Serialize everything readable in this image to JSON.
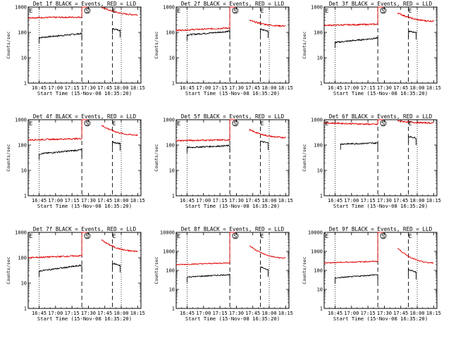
{
  "figure": {
    "legend_text": "BLACK = Events, RED = LLD",
    "ylabel": "Counts/sec",
    "xlabel": "Start Time (15-Nov-08 16:35:20)",
    "series_colors": {
      "events": "#000000",
      "lld": "#e00000"
    },
    "panels": [
      {
        "title": "Det 1f  BLACK = Events, RED = LLD"
      },
      {
        "title": "Det 2f  BLACK = Events, RED = LLD"
      },
      {
        "title": "Det 3f  BLACK = Events, RED = LLD"
      },
      {
        "title": "Det 4f  BLACK = Events, RED = LLD"
      },
      {
        "title": "Det 5f  BLACK = Events, RED = LLD"
      },
      {
        "title": "Det 6f  BLACK = Events, RED = LLD"
      },
      {
        "title": "Det 7f  BLACK = Events, RED = LLD"
      },
      {
        "title": "Det 8f  BLACK = Events, RED = LLD"
      },
      {
        "title": "Det 9f  BLACK = Events, RED = LLD"
      }
    ]
  },
  "chart_data": [
    {
      "type": "line",
      "title": "Det 1f  BLACK = Events, RED = LLD",
      "xlabel": "Start Time (15-Nov-08 16:35:20)",
      "ylabel": "Counts/sec",
      "yscale": "log",
      "ylim": [
        1,
        1000
      ],
      "yticks": [
        "1",
        "10",
        "100",
        "1000"
      ],
      "xticks": [
        "16:45",
        "17:00",
        "17:15",
        "17:30",
        "17:45",
        "18:00",
        "18:15"
      ],
      "xlim": [
        "16:35",
        "18:18"
      ],
      "vlines_dotted": [
        "16:45",
        "18:00"
      ],
      "vlines_dashed": [
        "17:24",
        "17:52"
      ],
      "markers": [
        {
          "label": "E",
          "x": "16:36"
        },
        {
          "label": "S",
          "x": "17:29"
        },
        {
          "label": "E",
          "x": "17:52"
        }
      ],
      "series": [
        {
          "name": "Events",
          "color": "#000000",
          "segments": [
            {
              "x": [
                "16:45",
                "17:24"
              ],
              "y": [
                62,
                90
              ]
            },
            {
              "x": [
                "17:52",
                "17:59"
              ],
              "y": [
                140,
                120
              ]
            }
          ]
        },
        {
          "name": "LLD",
          "color": "#e00000",
          "segments": [
            {
              "x": [
                "16:35",
                "17:24"
              ],
              "y": [
                380,
                400
              ]
            },
            {
              "x": [
                "17:24",
                "17:29"
              ],
              "y": [
                1000,
                1000
              ]
            },
            {
              "x": [
                "17:42",
                "18:15"
              ],
              "y": [
                1000,
                500
              ]
            }
          ]
        }
      ]
    },
    {
      "type": "line",
      "title": "Det 2f  BLACK = Events, RED = LLD",
      "xlabel": "Start Time (15-Nov-08 16:35:20)",
      "ylabel": "Counts/sec",
      "yscale": "log",
      "ylim": [
        1,
        1000
      ],
      "yticks": [
        "1",
        "10",
        "100",
        "1000"
      ],
      "xticks": [
        "16:45",
        "17:00",
        "17:15",
        "17:30",
        "17:45",
        "18:00",
        "18:15"
      ],
      "xlim": [
        "16:35",
        "18:18"
      ],
      "vlines_dotted": [
        "16:45",
        "18:00"
      ],
      "vlines_dashed": [
        "17:24",
        "17:52"
      ],
      "markers": [
        {
          "label": "E",
          "x": "16:36"
        },
        {
          "label": "S",
          "x": "17:29"
        },
        {
          "label": "E",
          "x": "17:52"
        }
      ],
      "series": [
        {
          "name": "Events",
          "color": "#000000",
          "segments": [
            {
              "x": [
                "16:45",
                "17:24"
              ],
              "y": [
                80,
                110
              ]
            },
            {
              "x": [
                "17:52",
                "17:59"
              ],
              "y": [
                130,
                115
              ]
            }
          ]
        },
        {
          "name": "LLD",
          "color": "#e00000",
          "segments": [
            {
              "x": [
                "16:35",
                "17:24"
              ],
              "y": [
                120,
                150
              ]
            },
            {
              "x": [
                "17:24",
                "17:29"
              ],
              "y": [
                1000,
                1000
              ]
            },
            {
              "x": [
                "17:42",
                "18:15"
              ],
              "y": [
                300,
                180
              ]
            }
          ]
        }
      ]
    },
    {
      "type": "line",
      "title": "Det 3f  BLACK = Events, RED = LLD",
      "xlabel": "Start Time (15-Nov-08 16:35:20)",
      "ylabel": "Counts/sec",
      "yscale": "log",
      "ylim": [
        1,
        1000
      ],
      "yticks": [
        "1",
        "10",
        "100",
        "1000"
      ],
      "xticks": [
        "16:45",
        "17:00",
        "17:15",
        "17:30",
        "17:45",
        "18:00",
        "18:15"
      ],
      "xlim": [
        "16:35",
        "18:18"
      ],
      "vlines_dotted": [
        "16:45",
        "18:00"
      ],
      "vlines_dashed": [
        "17:24",
        "17:52"
      ],
      "markers": [
        {
          "label": "E",
          "x": "16:36"
        },
        {
          "label": "S",
          "x": "17:29"
        },
        {
          "label": "E",
          "x": "17:52"
        }
      ],
      "series": [
        {
          "name": "Events",
          "color": "#000000",
          "segments": [
            {
              "x": [
                "16:45",
                "17:24"
              ],
              "y": [
                40,
                60
              ]
            },
            {
              "x": [
                "17:52",
                "17:59"
              ],
              "y": [
                110,
                100
              ]
            }
          ]
        },
        {
          "name": "LLD",
          "color": "#e00000",
          "segments": [
            {
              "x": [
                "16:35",
                "17:24"
              ],
              "y": [
                190,
                210
              ]
            },
            {
              "x": [
                "17:24",
                "17:29"
              ],
              "y": [
                1000,
                1000
              ]
            },
            {
              "x": [
                "17:42",
                "18:15"
              ],
              "y": [
                600,
                280
              ]
            }
          ]
        }
      ]
    },
    {
      "type": "line",
      "title": "Det 4f  BLACK = Events, RED = LLD",
      "xlabel": "Start Time (15-Nov-08 16:35:20)",
      "ylabel": "Counts/sec",
      "yscale": "log",
      "ylim": [
        1,
        1000
      ],
      "yticks": [
        "1",
        "10",
        "100",
        "1000"
      ],
      "xticks": [
        "16:45",
        "17:00",
        "17:15",
        "17:30",
        "17:45",
        "18:00",
        "18:15"
      ],
      "xlim": [
        "16:35",
        "18:18"
      ],
      "vlines_dotted": [
        "16:45",
        "18:00"
      ],
      "vlines_dashed": [
        "17:24",
        "17:52"
      ],
      "markers": [
        {
          "label": "E",
          "x": "16:36"
        },
        {
          "label": "S",
          "x": "17:29"
        },
        {
          "label": "E",
          "x": "17:52"
        }
      ],
      "series": [
        {
          "name": "Events",
          "color": "#000000",
          "segments": [
            {
              "x": [
                "16:45",
                "17:24"
              ],
              "y": [
                45,
                65
              ]
            },
            {
              "x": [
                "17:52",
                "17:59"
              ],
              "y": [
                130,
                115
              ]
            }
          ]
        },
        {
          "name": "LLD",
          "color": "#e00000",
          "segments": [
            {
              "x": [
                "16:35",
                "17:24"
              ],
              "y": [
                160,
                180
              ]
            },
            {
              "x": [
                "17:24",
                "17:29"
              ],
              "y": [
                1000,
                1000
              ]
            },
            {
              "x": [
                "17:42",
                "18:15"
              ],
              "y": [
                600,
                250
              ]
            }
          ]
        }
      ]
    },
    {
      "type": "line",
      "title": "Det 5f  BLACK = Events, RED = LLD",
      "xlabel": "Start Time (15-Nov-08 16:35:20)",
      "ylabel": "Counts/sec",
      "yscale": "log",
      "ylim": [
        1,
        1000
      ],
      "yticks": [
        "1",
        "10",
        "100",
        "1000"
      ],
      "xticks": [
        "16:45",
        "17:00",
        "17:15",
        "17:30",
        "17:45",
        "18:00",
        "18:15"
      ],
      "xlim": [
        "16:35",
        "18:18"
      ],
      "vlines_dotted": [
        "16:45",
        "18:00"
      ],
      "vlines_dashed": [
        "17:24",
        "17:52"
      ],
      "markers": [
        {
          "label": "E",
          "x": "16:36"
        },
        {
          "label": "S",
          "x": "17:29"
        },
        {
          "label": "E",
          "x": "17:52"
        }
      ],
      "series": [
        {
          "name": "Events",
          "color": "#000000",
          "segments": [
            {
              "x": [
                "16:45",
                "17:24"
              ],
              "y": [
                80,
                95
              ]
            },
            {
              "x": [
                "17:52",
                "17:59"
              ],
              "y": [
                140,
                120
              ]
            }
          ]
        },
        {
          "name": "LLD",
          "color": "#e00000",
          "segments": [
            {
              "x": [
                "16:35",
                "17:24"
              ],
              "y": [
                150,
                160
              ]
            },
            {
              "x": [
                "17:24",
                "17:29"
              ],
              "y": [
                1000,
                1000
              ]
            },
            {
              "x": [
                "17:42",
                "18:15"
              ],
              "y": [
                400,
                200
              ]
            }
          ]
        }
      ]
    },
    {
      "type": "line",
      "title": "Det 6f  BLACK = Events, RED = LLD",
      "xlabel": "Start Time (15-Nov-08 16:35:20)",
      "ylabel": "Counts/sec",
      "yscale": "log",
      "ylim": [
        1,
        1000
      ],
      "yticks": [
        "1",
        "10",
        "100",
        "1000"
      ],
      "xticks": [
        "16:45",
        "17:00",
        "17:15",
        "17:30",
        "17:45",
        "18:00",
        "18:15"
      ],
      "xlim": [
        "16:35",
        "18:18"
      ],
      "vlines_dotted": [
        "16:45",
        "18:00"
      ],
      "vlines_dashed": [
        "17:24",
        "17:52"
      ],
      "markers": [
        {
          "label": "E",
          "x": "16:36"
        },
        {
          "label": "S",
          "x": "17:29"
        },
        {
          "label": "E",
          "x": "17:52"
        }
      ],
      "series": [
        {
          "name": "Events",
          "color": "#000000",
          "segments": [
            {
              "x": [
                "16:50",
                "17:24"
              ],
              "y": [
                110,
                120
              ]
            },
            {
              "x": [
                "17:52",
                "17:59"
              ],
              "y": [
                220,
                190
              ]
            }
          ]
        },
        {
          "name": "LLD",
          "color": "#e00000",
          "segments": [
            {
              "x": [
                "16:35",
                "17:24"
              ],
              "y": [
                750,
                650
              ]
            },
            {
              "x": [
                "17:24",
                "17:29"
              ],
              "y": [
                1000,
                1000
              ]
            },
            {
              "x": [
                "17:42",
                "18:15"
              ],
              "y": [
                900,
                750
              ]
            }
          ]
        }
      ]
    },
    {
      "type": "line",
      "title": "Det 7f  BLACK = Events, RED = LLD",
      "xlabel": "Start Time (15-Nov-08 16:35:20)",
      "ylabel": "Counts/sec",
      "yscale": "log",
      "ylim": [
        1,
        1000
      ],
      "yticks": [
        "1",
        "10",
        "100",
        "1000"
      ],
      "xticks": [
        "16:45",
        "17:00",
        "17:15",
        "17:30",
        "17:45",
        "18:00",
        "18:15"
      ],
      "xlim": [
        "16:35",
        "18:18"
      ],
      "vlines_dotted": [
        "16:45",
        "18:00"
      ],
      "vlines_dashed": [
        "17:24",
        "17:52"
      ],
      "markers": [
        {
          "label": "E",
          "x": "16:36"
        },
        {
          "label": "S",
          "x": "17:29"
        },
        {
          "label": "E",
          "x": "17:52"
        }
      ],
      "series": [
        {
          "name": "Events",
          "color": "#000000",
          "segments": [
            {
              "x": [
                "16:45",
                "17:24"
              ],
              "y": [
                30,
                50
              ]
            },
            {
              "x": [
                "17:52",
                "17:59"
              ],
              "y": [
                60,
                50
              ]
            }
          ]
        },
        {
          "name": "LLD",
          "color": "#e00000",
          "segments": [
            {
              "x": [
                "16:35",
                "17:24"
              ],
              "y": [
                100,
                120
              ]
            },
            {
              "x": [
                "17:24",
                "17:29"
              ],
              "y": [
                1000,
                1000
              ]
            },
            {
              "x": [
                "17:42",
                "18:15"
              ],
              "y": [
                500,
                180
              ]
            }
          ]
        }
      ]
    },
    {
      "type": "line",
      "title": "Det 8f  BLACK = Events, RED = LLD",
      "xlabel": "Start Time (15-Nov-08 16:35:20)",
      "ylabel": "Counts/sec",
      "yscale": "log",
      "ylim": [
        1,
        10000
      ],
      "yticks": [
        "1",
        "10",
        "100",
        "1000",
        "10000"
      ],
      "xticks": [
        "16:45",
        "17:00",
        "17:15",
        "17:30",
        "17:45",
        "18:00",
        "18:15"
      ],
      "xlim": [
        "16:35",
        "18:18"
      ],
      "vlines_dotted": [
        "16:45",
        "18:00"
      ],
      "vlines_dashed": [
        "17:24",
        "17:52"
      ],
      "markers": [
        {
          "label": "E",
          "x": "16:36"
        },
        {
          "label": "S",
          "x": "17:29"
        },
        {
          "label": "E",
          "x": "17:52"
        }
      ],
      "series": [
        {
          "name": "Events",
          "color": "#000000",
          "segments": [
            {
              "x": [
                "16:45",
                "17:24"
              ],
              "y": [
                45,
                60
              ]
            },
            {
              "x": [
                "17:52",
                "17:59"
              ],
              "y": [
                150,
                110
              ]
            }
          ]
        },
        {
          "name": "LLD",
          "color": "#e00000",
          "segments": [
            {
              "x": [
                "16:35",
                "17:24"
              ],
              "y": [
                200,
                250
              ]
            },
            {
              "x": [
                "17:24",
                "17:29"
              ],
              "y": [
                10000,
                10000
              ]
            },
            {
              "x": [
                "17:42",
                "18:15"
              ],
              "y": [
                2000,
                450
              ]
            }
          ]
        }
      ]
    },
    {
      "type": "line",
      "title": "Det 9f  BLACK = Events, RED = LLD",
      "xlabel": "Start Time (15-Nov-08 16:35:20)",
      "ylabel": "Counts/sec",
      "yscale": "log",
      "ylim": [
        1,
        10000
      ],
      "yticks": [
        "1",
        "10",
        "100",
        "1000",
        "10000"
      ],
      "xticks": [
        "16:45",
        "17:00",
        "17:15",
        "17:30",
        "17:45",
        "18:00",
        "18:15"
      ],
      "xlim": [
        "16:35",
        "18:18"
      ],
      "vlines_dotted": [
        "16:45",
        "18:00"
      ],
      "vlines_dashed": [
        "17:24",
        "17:52"
      ],
      "markers": [
        {
          "label": "E",
          "x": "16:36"
        },
        {
          "label": "S",
          "x": "17:29"
        },
        {
          "label": "E",
          "x": "17:52"
        }
      ],
      "series": [
        {
          "name": "Events",
          "color": "#000000",
          "segments": [
            {
              "x": [
                "16:45",
                "17:24"
              ],
              "y": [
                40,
                60
              ]
            },
            {
              "x": [
                "17:52",
                "17:59"
              ],
              "y": [
                110,
                80
              ]
            }
          ]
        },
        {
          "name": "LLD",
          "color": "#e00000",
          "segments": [
            {
              "x": [
                "16:35",
                "17:24"
              ],
              "y": [
                250,
                300
              ]
            },
            {
              "x": [
                "17:24",
                "17:29"
              ],
              "y": [
                10000,
                10000
              ]
            },
            {
              "x": [
                "17:42",
                "18:15"
              ],
              "y": [
                1500,
                250
              ]
            }
          ]
        }
      ]
    }
  ]
}
